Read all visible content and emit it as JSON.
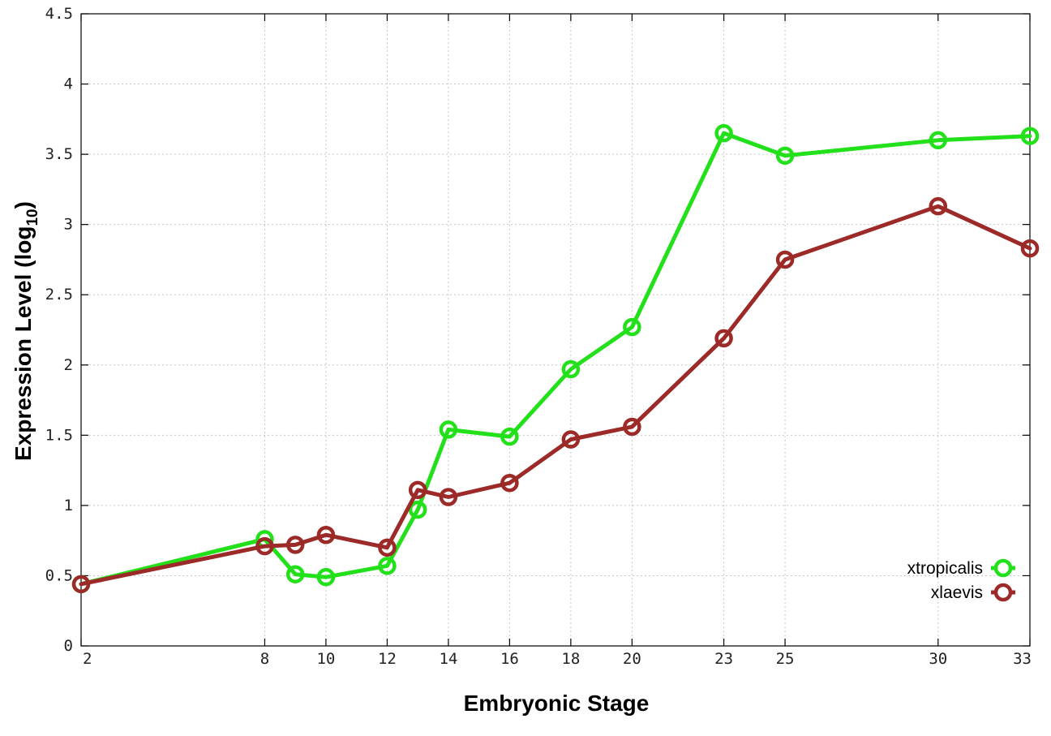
{
  "chart_data": {
    "type": "line",
    "title": "",
    "xlabel": "Embryonic Stage",
    "ylabel_main": "Expression Level (log",
    "ylabel_sub": "10",
    "ylabel_close": ")",
    "x_ticks": [
      2,
      8,
      10,
      12,
      14,
      16,
      18,
      20,
      23,
      25,
      30,
      33
    ],
    "x_tick_labels": [
      "2",
      "8",
      "10",
      "12",
      "14",
      "16",
      "18",
      "20",
      "23",
      "25",
      "30",
      "33"
    ],
    "y_ticks": [
      0,
      0.5,
      1,
      1.5,
      2,
      2.5,
      3,
      3.5,
      4,
      4.5
    ],
    "y_tick_labels": [
      "0",
      "0.5",
      "1",
      "1.5",
      "2",
      "2.5",
      "3",
      "3.5",
      "4",
      "4.5"
    ],
    "xlim": [
      2,
      33
    ],
    "ylim": [
      0,
      4.5
    ],
    "grid": true,
    "legend_position": "bottom-right",
    "x": [
      2,
      8,
      9,
      10,
      12,
      13,
      14,
      16,
      18,
      20,
      23,
      25,
      30,
      33
    ],
    "series": [
      {
        "name": "xtropicalis",
        "color": "#22e01a",
        "values": [
          0.44,
          0.76,
          0.51,
          0.49,
          0.57,
          0.97,
          1.54,
          1.49,
          1.97,
          2.27,
          3.65,
          3.49,
          3.6,
          3.63
        ]
      },
      {
        "name": "xlaevis",
        "color": "#9b2a28",
        "values": [
          0.44,
          0.71,
          0.72,
          0.79,
          0.7,
          1.11,
          1.06,
          1.16,
          1.47,
          1.56,
          2.19,
          2.75,
          3.13,
          2.83
        ]
      }
    ]
  }
}
